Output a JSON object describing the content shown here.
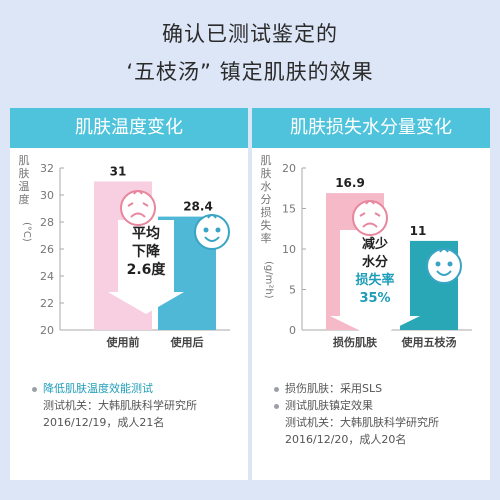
{
  "header": {
    "line1": "确认已测试鉴定的",
    "line2": "‘五枝汤” 镇定肌肤的效果"
  },
  "left_panel": {
    "title": "肌肤温度变化",
    "ylabel_chars": [
      "肌",
      "肤",
      "温",
      "度"
    ],
    "unit_label": "(°C)",
    "callout": [
      "平均",
      "下降",
      "2.6度"
    ],
    "notes": [
      {
        "text": "降低肌肤温度效能测试",
        "highlight": true
      },
      {
        "text": "测试机关：大韩肌肤科学研究所",
        "highlight": false
      },
      {
        "text": "2016/12/19，成人21名",
        "highlight": false
      }
    ]
  },
  "right_panel": {
    "title": "肌肤损失水分量变化",
    "ylabel_chars": [
      "肌",
      "肤",
      "水",
      "分",
      "损",
      "失",
      "率"
    ],
    "unit_label": "(g/m²h)",
    "callout": [
      "减少",
      "水分",
      "损失率",
      "35%"
    ],
    "notes": [
      {
        "text": "损伤肌肤：采用SLS",
        "highlight": false
      },
      {
        "text": "测试肌肤镇定效果",
        "highlight": false
      },
      {
        "text": "测试机关：大韩肌肤科学研究所",
        "highlight": false
      },
      {
        "text": "2016/12/20，成人20名",
        "highlight": false
      }
    ]
  },
  "colors": {
    "header": "#4fc3dc",
    "pink_bar": "#f8cfe0",
    "blue_bar": "#4fb8d6",
    "pink_bar2": "#f6b9c8",
    "teal_bar": "#2aa7b7",
    "accent": "#1f9db8"
  },
  "chart_data": [
    {
      "type": "bar",
      "title": "肌肤温度变化",
      "ylabel": "肌肤温度(°C)",
      "categories": [
        "使用前",
        "使用后"
      ],
      "values": [
        31,
        28.4
      ],
      "yticks": [
        20,
        22,
        24,
        26,
        28,
        30,
        32
      ],
      "ylim": [
        20,
        32
      ]
    },
    {
      "type": "bar",
      "title": "肌肤损失水分量变化",
      "ylabel": "肌肤水分损失率(g/m²h)",
      "categories": [
        "损伤肌肤",
        "使用五枝汤"
      ],
      "values": [
        16.9,
        11
      ],
      "yticks": [
        0,
        5,
        10,
        15,
        20
      ],
      "ylim": [
        0,
        20
      ]
    }
  ]
}
